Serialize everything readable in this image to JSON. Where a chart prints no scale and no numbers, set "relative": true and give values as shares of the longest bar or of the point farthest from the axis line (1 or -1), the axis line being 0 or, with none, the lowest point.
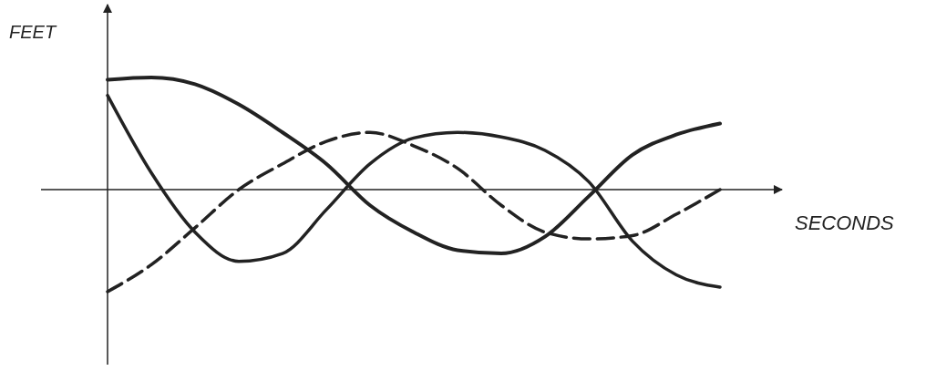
{
  "chart_data": {
    "type": "line",
    "relative": true,
    "xlabel": "SECONDS",
    "ylabel": "FEET",
    "marker": "none",
    "categories": [
      null,
      null,
      null,
      null,
      null,
      null,
      null,
      null,
      null,
      null,
      null,
      null,
      null,
      null,
      null
    ],
    "series": [
      {
        "color": "#222222",
        "line_style": "solid",
        "values": [
          0.84,
          0.15,
          -0.38,
          -0.64,
          -0.57,
          -0.18,
          0.23,
          0.46,
          0.51,
          0.47,
          0.35,
          0.07,
          -0.46,
          -0.76,
          -0.87
        ]
      },
      {
        "color": "#222222",
        "line_style": "dashed",
        "values": [
          -0.91,
          -0.67,
          -0.34,
          0,
          0.23,
          0.43,
          0.51,
          0.39,
          0.19,
          -0.14,
          -0.38,
          -0.44,
          -0.41,
          -0.22,
          0
        ]
      },
      {
        "color": "#222222",
        "line_style": "solid",
        "values": [
          0.98,
          1,
          0.94,
          0.76,
          0.51,
          0.23,
          -0.14,
          -0.38,
          -0.54,
          -0.57,
          -0.42,
          -0.06,
          0.31,
          0.49,
          0.59
        ]
      }
    ]
  }
}
